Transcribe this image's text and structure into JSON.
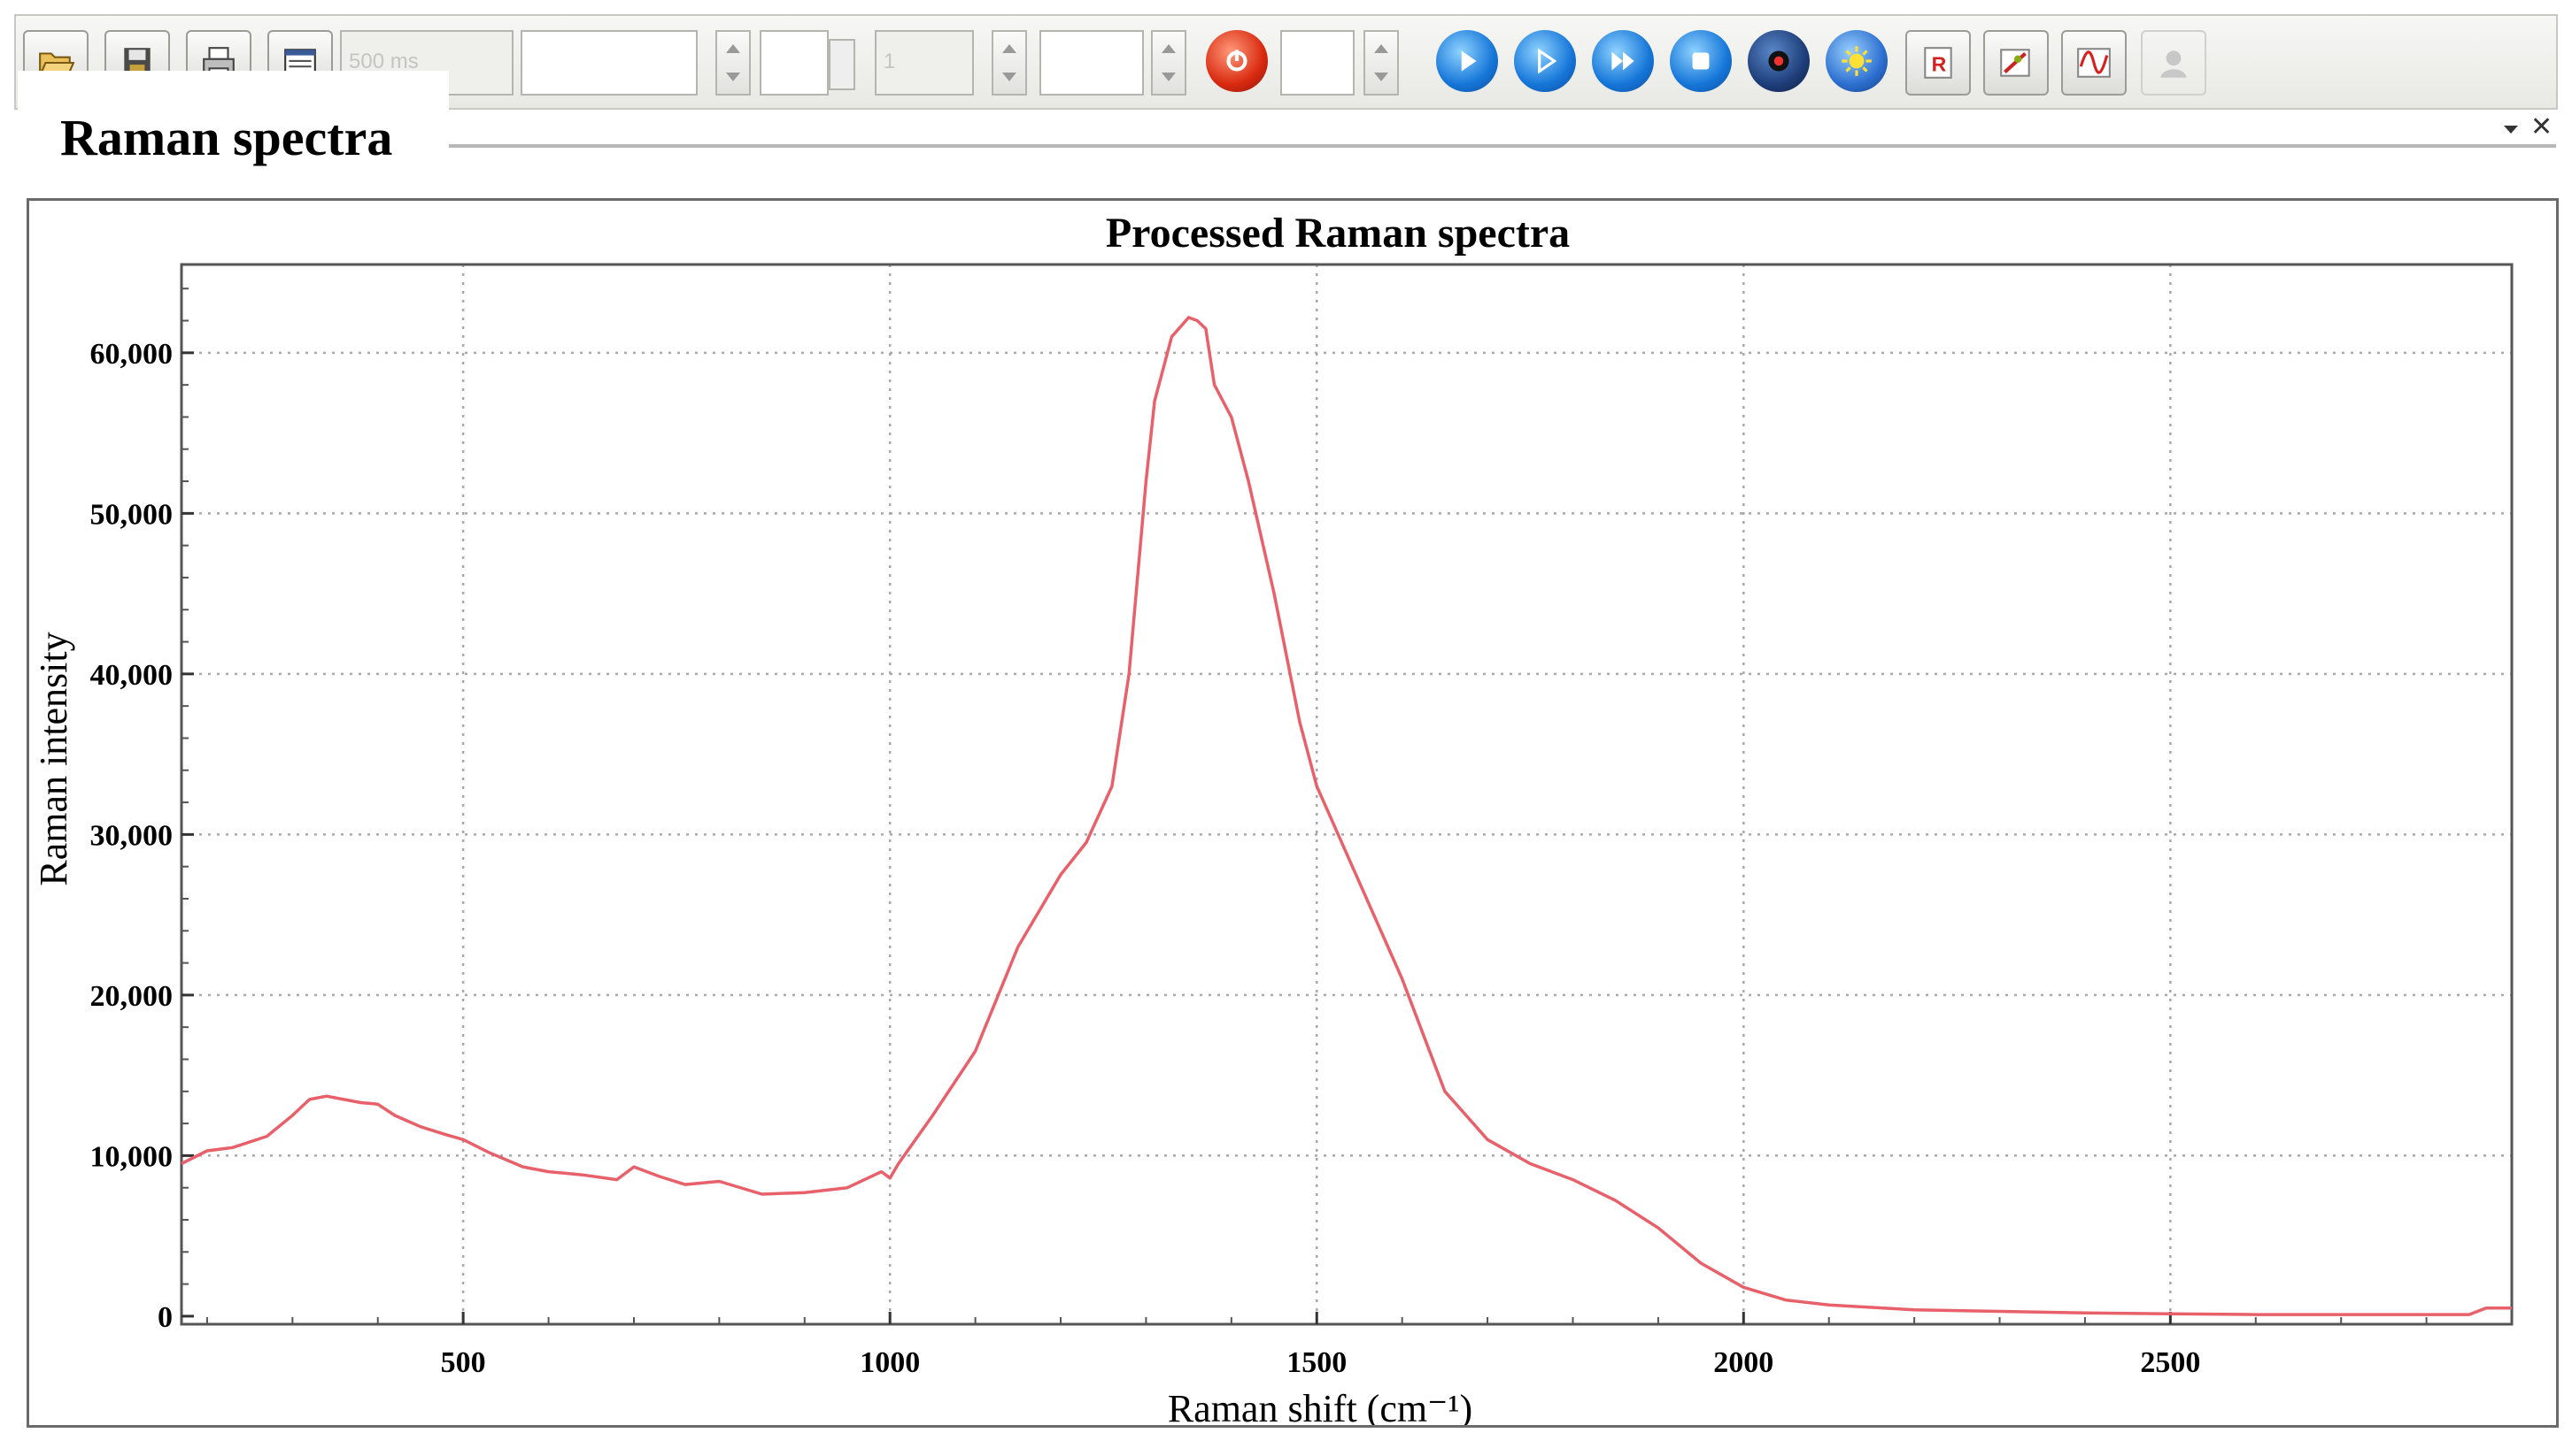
{
  "toolbar": {
    "exposure_value": "500 ms",
    "count_value": "1",
    "buttons": [
      {
        "name": "open-folder-icon"
      },
      {
        "name": "save-icon"
      },
      {
        "name": "print-icon"
      },
      {
        "name": "table-view-icon"
      },
      {
        "name": "stop-laser-icon"
      },
      {
        "name": "play-icon"
      },
      {
        "name": "step-play-icon"
      },
      {
        "name": "fast-forward-icon"
      },
      {
        "name": "stop-icon"
      },
      {
        "name": "record-icon"
      },
      {
        "name": "light-source-icon"
      },
      {
        "name": "r-marker-icon"
      },
      {
        "name": "pointer-tool-icon"
      },
      {
        "name": "spectrum-icon"
      },
      {
        "name": "user-icon"
      }
    ]
  },
  "panel": {
    "tab_label": "Raman spectra"
  },
  "chart_data": {
    "type": "line",
    "title": "Processed Raman spectra",
    "xlabel": "Raman shift (cm⁻¹)",
    "ylabel": "Raman intensity",
    "xlim": [
      170,
      2900
    ],
    "ylim": [
      -500,
      65500
    ],
    "x_ticks": [
      {
        "value": 500,
        "label": "500"
      },
      {
        "value": 1000,
        "label": "1000"
      },
      {
        "value": 1500,
        "label": "1500"
      },
      {
        "value": 2000,
        "label": "2000"
      },
      {
        "value": 2500,
        "label": "2500"
      }
    ],
    "y_ticks": [
      {
        "value": 0,
        "label": "0"
      },
      {
        "value": 10000,
        "label": "10,000"
      },
      {
        "value": 20000,
        "label": "20,000"
      },
      {
        "value": 30000,
        "label": "30,000"
      },
      {
        "value": 40000,
        "label": "40,000"
      },
      {
        "value": 50000,
        "label": "50,000"
      },
      {
        "value": 60000,
        "label": "60,000"
      }
    ],
    "grid": true,
    "line_color": "#e8606a",
    "series": [
      {
        "x": [
          170,
          200,
          230,
          270,
          300,
          320,
          340,
          360,
          380,
          400,
          420,
          450,
          480,
          500,
          530,
          570,
          600,
          640,
          680,
          700,
          730,
          760,
          800,
          850,
          900,
          950,
          990,
          1000,
          1010,
          1050,
          1100,
          1150,
          1200,
          1230,
          1260,
          1280,
          1300,
          1310,
          1330,
          1350,
          1360,
          1370,
          1380,
          1400,
          1420,
          1450,
          1480,
          1500,
          1550,
          1600,
          1650,
          1700,
          1750,
          1800,
          1850,
          1900,
          1950,
          2000,
          2050,
          2100,
          2200,
          2300,
          2400,
          2500,
          2600,
          2700,
          2800,
          2850,
          2870,
          2900
        ],
        "y": [
          9500,
          10300,
          10500,
          11200,
          12500,
          13500,
          13700,
          13500,
          13300,
          13200,
          12500,
          11800,
          11300,
          11000,
          10200,
          9300,
          9000,
          8800,
          8500,
          9300,
          8700,
          8200,
          8400,
          7600,
          7700,
          8000,
          9000,
          8600,
          9500,
          12500,
          16500,
          23000,
          27500,
          29500,
          33000,
          40000,
          52000,
          57000,
          61000,
          62200,
          62000,
          61500,
          58000,
          56000,
          52000,
          45000,
          37000,
          33000,
          27000,
          21000,
          14000,
          11000,
          9500,
          8500,
          7200,
          5500,
          3300,
          1800,
          1000,
          700,
          400,
          300,
          200,
          150,
          100,
          100,
          100,
          100,
          500,
          500
        ]
      }
    ]
  }
}
